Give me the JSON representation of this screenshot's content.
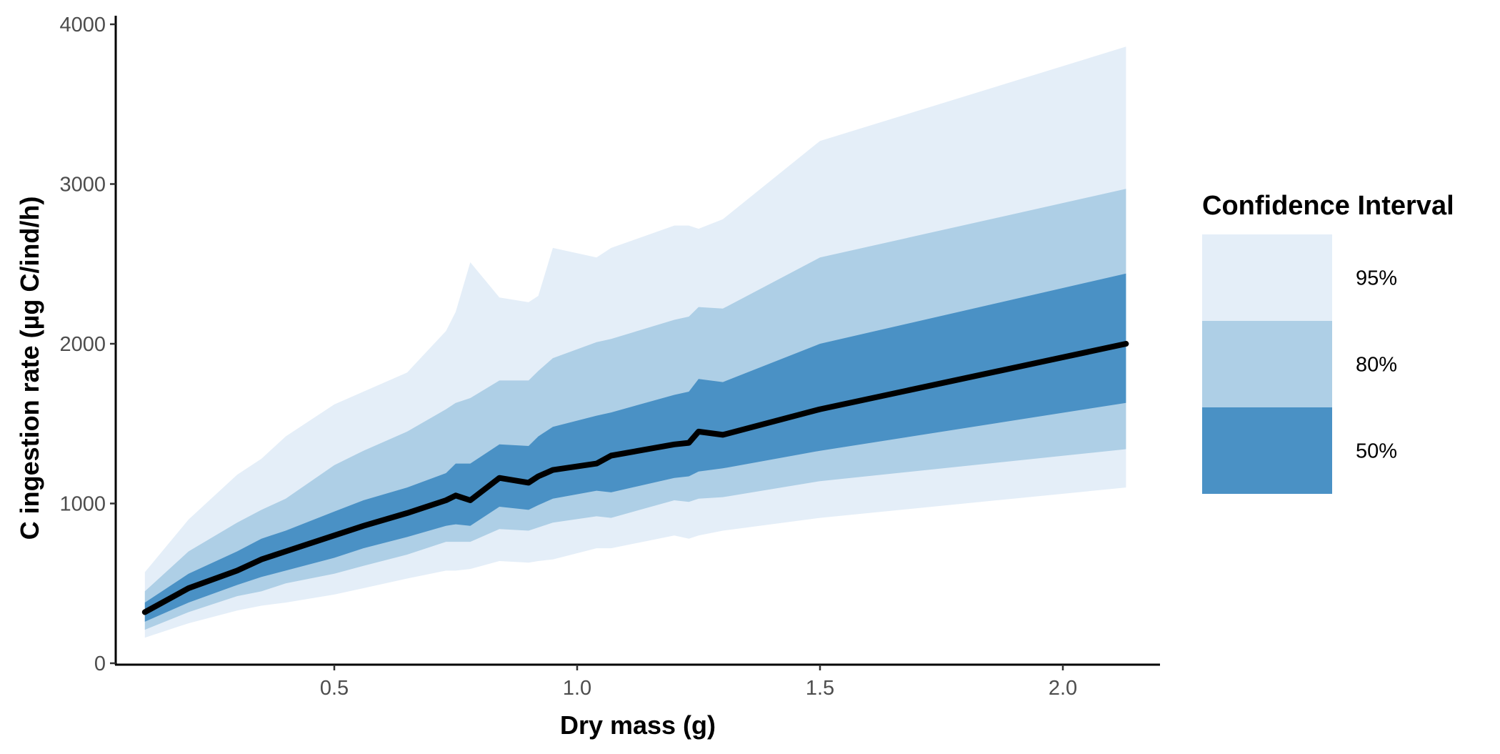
{
  "chart_data": {
    "type": "area",
    "title": "",
    "xlabel": "Dry mass (g)",
    "ylabel": "C ingestion rate (µg C/ind/h)",
    "xlim": [
      0.05,
      2.2
    ],
    "ylim": [
      0,
      4000
    ],
    "x_ticks": [
      0.5,
      1.0,
      1.5,
      2.0
    ],
    "x_tick_labels": [
      "0.5",
      "1.0",
      "1.5",
      "2.0"
    ],
    "y_ticks": [
      0,
      1000,
      2000,
      3000,
      4000
    ],
    "y_tick_labels": [
      "0",
      "1000",
      "2000",
      "3000",
      "4000"
    ],
    "grid": false,
    "legend": {
      "title": "Confidence Interval",
      "placement": "right",
      "entries": [
        {
          "label": "95%",
          "color": "#e4eef8"
        },
        {
          "label": "80%",
          "color": "#aecfe6"
        },
        {
          "label": "50%",
          "color": "#4a91c5"
        }
      ]
    },
    "colors": {
      "band95": "#e4eef8",
      "band80": "#aecfe6",
      "band50": "#4a91c5",
      "median": "#000000"
    },
    "x": [
      0.11,
      0.2,
      0.3,
      0.35,
      0.4,
      0.5,
      0.56,
      0.65,
      0.73,
      0.75,
      0.78,
      0.84,
      0.9,
      0.92,
      0.95,
      1.04,
      1.07,
      1.2,
      1.23,
      1.25,
      1.3,
      1.5,
      2.13
    ],
    "median": [
      320,
      470,
      580,
      650,
      700,
      800,
      860,
      940,
      1020,
      1050,
      1020,
      1160,
      1130,
      1170,
      1210,
      1250,
      1300,
      1370,
      1380,
      1450,
      1430,
      1590,
      2000
    ],
    "series": [
      {
        "band": "95%",
        "lower": [
          160,
          250,
          330,
          360,
          380,
          430,
          470,
          530,
          580,
          580,
          590,
          640,
          630,
          640,
          650,
          720,
          720,
          800,
          780,
          800,
          830,
          910,
          1100
        ],
        "upper": [
          570,
          900,
          1180,
          1280,
          1420,
          1620,
          1700,
          1820,
          2080,
          2200,
          2510,
          2290,
          2260,
          2300,
          2600,
          2540,
          2600,
          2740,
          2740,
          2720,
          2780,
          3270,
          3860
        ]
      },
      {
        "band": "80%",
        "lower": [
          210,
          320,
          420,
          450,
          500,
          560,
          610,
          680,
          760,
          760,
          760,
          840,
          830,
          850,
          880,
          920,
          910,
          1020,
          1010,
          1030,
          1040,
          1140,
          1340
        ],
        "upper": [
          450,
          700,
          880,
          960,
          1030,
          1240,
          1330,
          1450,
          1590,
          1630,
          1660,
          1770,
          1770,
          1830,
          1910,
          2010,
          2030,
          2150,
          2170,
          2230,
          2220,
          2540,
          2970
        ]
      },
      {
        "band": "50%",
        "lower": [
          260,
          380,
          490,
          540,
          580,
          660,
          720,
          790,
          860,
          870,
          860,
          980,
          960,
          990,
          1030,
          1080,
          1070,
          1160,
          1170,
          1200,
          1220,
          1330,
          1630
        ],
        "upper": [
          380,
          560,
          700,
          780,
          830,
          950,
          1020,
          1100,
          1190,
          1250,
          1250,
          1370,
          1360,
          1420,
          1480,
          1550,
          1570,
          1680,
          1700,
          1780,
          1760,
          2000,
          2440
        ]
      }
    ]
  }
}
